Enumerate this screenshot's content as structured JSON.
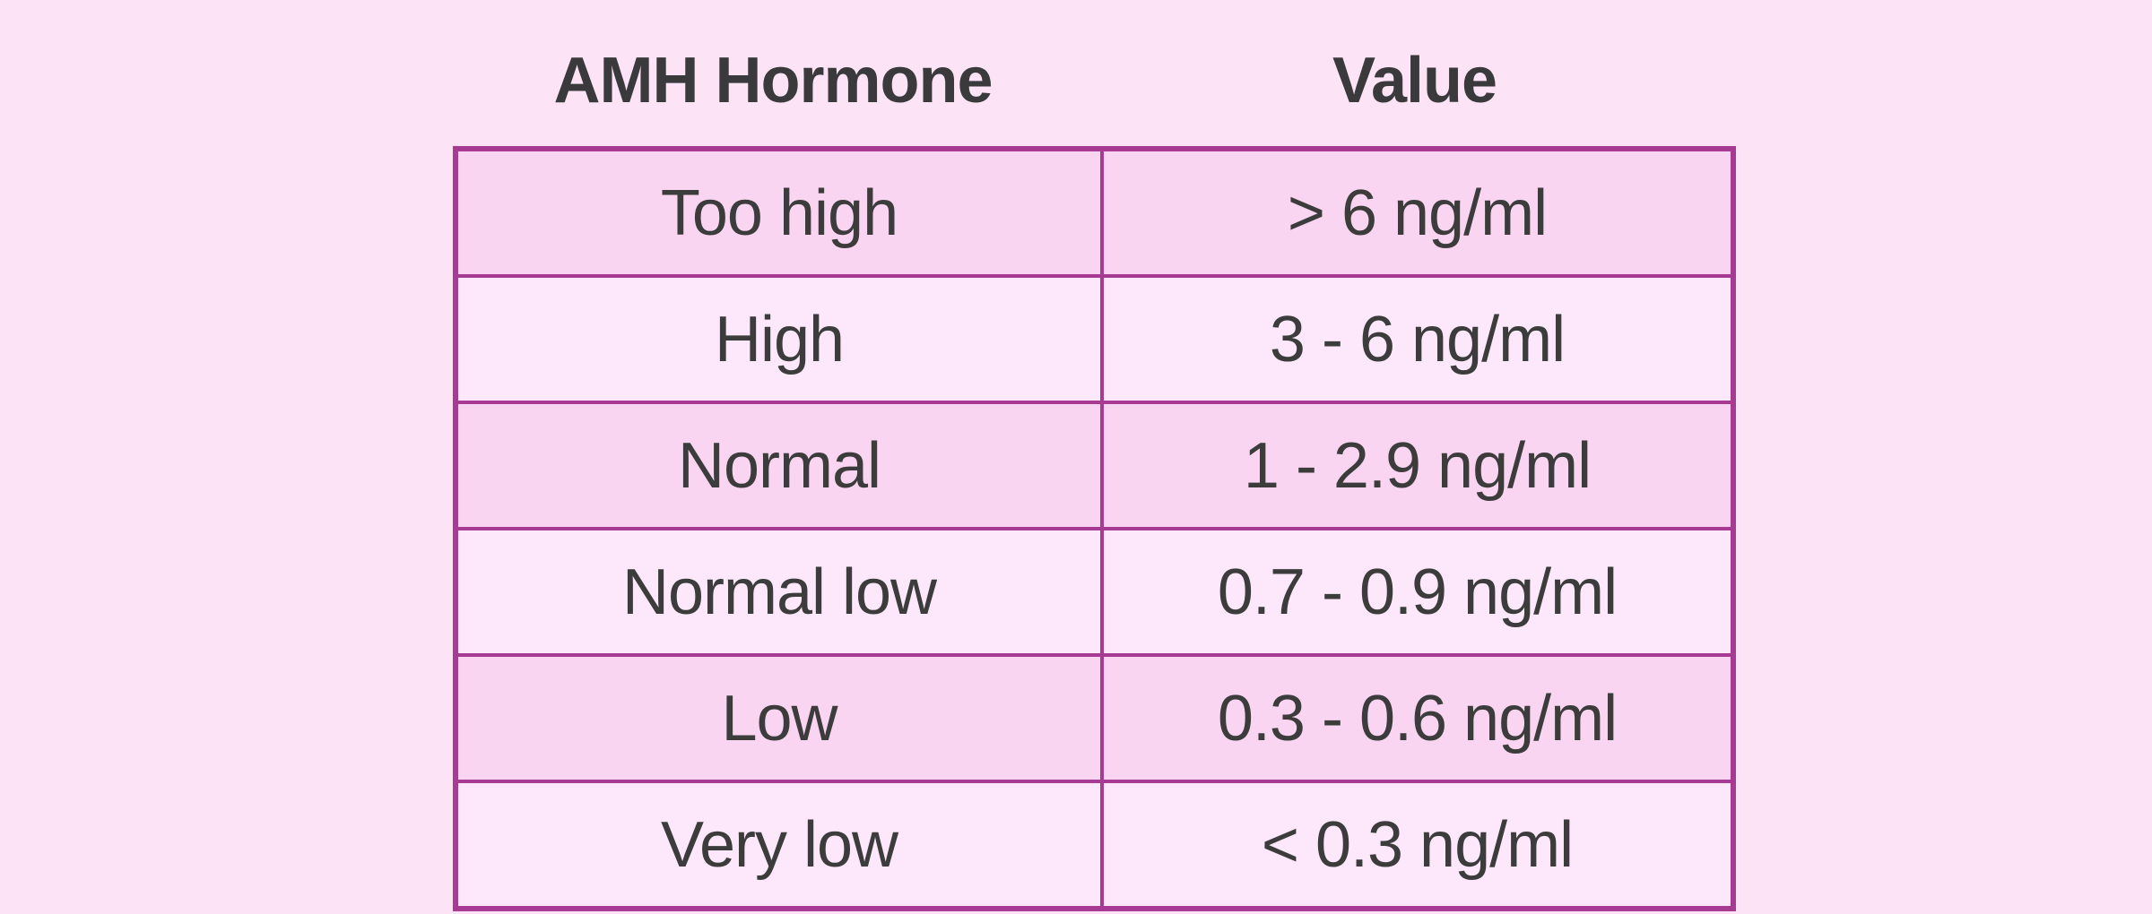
{
  "page": {
    "background_color": "#fce3f6",
    "border_color": "#a73b93",
    "row_color_odd": "#fad5f1",
    "row_color_even": "#fde8fb",
    "text_color": "#3c3c3c"
  },
  "table": {
    "columns": [
      {
        "label": "AMH Hormone"
      },
      {
        "label": "Value"
      }
    ],
    "rows": [
      {
        "level": "Too high",
        "value": "> 6 ng/ml"
      },
      {
        "level": "High",
        "value": "3 - 6 ng/ml"
      },
      {
        "level": "Normal",
        "value": "1 - 2.9 ng/ml"
      },
      {
        "level": "Normal low",
        "value": "0.7 - 0.9 ng/ml"
      },
      {
        "level": "Low",
        "value": "0.3 - 0.6 ng/ml"
      },
      {
        "level": "Very low",
        "value": "< 0.3 ng/ml"
      }
    ]
  },
  "chart_data": {
    "type": "table",
    "title": "AMH Hormone values",
    "columns": [
      "AMH Hormone",
      "Value"
    ],
    "rows": [
      [
        "Too high",
        "> 6 ng/ml"
      ],
      [
        "High",
        "3 - 6 ng/ml"
      ],
      [
        "Normal",
        "1 - 2.9 ng/ml"
      ],
      [
        "Normal low",
        "0.7 - 0.9 ng/ml"
      ],
      [
        "Low",
        "0.3 - 0.6 ng/ml"
      ],
      [
        "Very low",
        "< 0.3 ng/ml"
      ]
    ],
    "layout_hints": {
      "header_outside_borders": true,
      "alternating_row_shading": "odd rows darker pink",
      "cell_text_alignment": "center"
    }
  }
}
